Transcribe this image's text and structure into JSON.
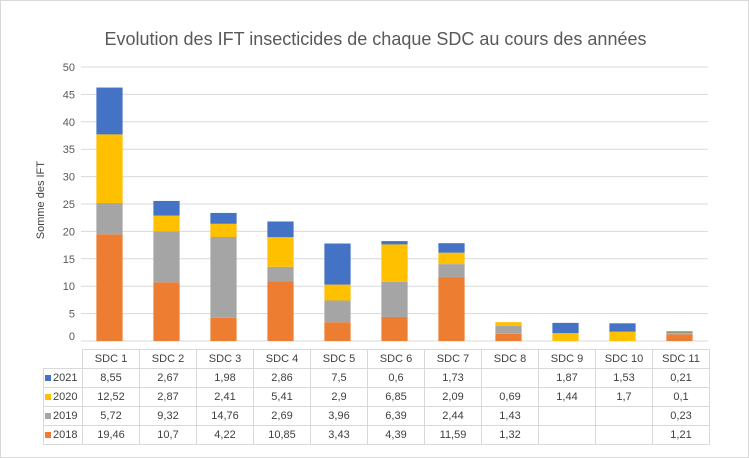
{
  "chart_data": {
    "type": "bar",
    "stacked": true,
    "title": "Evolution des IFT insecticides de chaque SDC au cours des années",
    "ylabel": "Somme des IFT",
    "xlabel": "",
    "ylim": [
      0,
      50
    ],
    "yticks": [
      "0",
      "5",
      "10",
      "15",
      "20",
      "25",
      "30",
      "35",
      "40",
      "45",
      "50"
    ],
    "grid": true,
    "legend": "data-table",
    "categories": [
      "SDC 1",
      "SDC 2",
      "SDC 3",
      "SDC 4",
      "SDC 5",
      "SDC 6",
      "SDC 7",
      "SDC 8",
      "SDC 9",
      "SDC 10",
      "SDC 11"
    ],
    "series": [
      {
        "name": "2018",
        "color": "#ED7D31",
        "values": [
          19.46,
          10.7,
          4.22,
          10.85,
          3.43,
          4.39,
          11.59,
          1.32,
          null,
          null,
          1.21
        ],
        "labels": [
          "19,46",
          "10,7",
          "4,22",
          "10,85",
          "3,43",
          "4,39",
          "11,59",
          "1,32",
          "",
          "",
          "1,21"
        ]
      },
      {
        "name": "2019",
        "color": "#A5A5A5",
        "values": [
          5.72,
          9.32,
          14.76,
          2.69,
          3.96,
          6.39,
          2.44,
          1.43,
          null,
          null,
          0.23
        ],
        "labels": [
          "5,72",
          "9,32",
          "14,76",
          "2,69",
          "3,96",
          "6,39",
          "2,44",
          "1,43",
          "",
          "",
          "0,23"
        ]
      },
      {
        "name": "2020",
        "color": "#FFC000",
        "values": [
          12.52,
          2.87,
          2.41,
          5.41,
          2.9,
          6.85,
          2.09,
          0.69,
          1.44,
          1.7,
          0.1
        ],
        "labels": [
          "12,52",
          "2,87",
          "2,41",
          "5,41",
          "2,9",
          "6,85",
          "2,09",
          "0,69",
          "1,44",
          "1,7",
          "0,1"
        ]
      },
      {
        "name": "2021",
        "color": "#4472C4",
        "values": [
          8.55,
          2.67,
          1.98,
          2.86,
          7.5,
          0.6,
          1.73,
          null,
          1.87,
          1.53,
          0.21
        ],
        "labels": [
          "8,55",
          "2,67",
          "1,98",
          "2,86",
          "7,5",
          "0,6",
          "1,73",
          "",
          "1,87",
          "1,53",
          "0,21"
        ]
      }
    ]
  }
}
